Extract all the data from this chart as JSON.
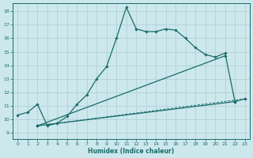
{
  "title": "",
  "xlabel": "Humidex (Indice chaleur)",
  "background_color": "#cce8ec",
  "grid_color": "#aacdd4",
  "line_color": "#1a6b6b",
  "xlim": [
    -0.5,
    23.5
  ],
  "ylim": [
    8.5,
    18.6
  ],
  "xticks": [
    0,
    1,
    2,
    3,
    4,
    5,
    6,
    7,
    8,
    9,
    10,
    11,
    12,
    13,
    14,
    15,
    16,
    17,
    18,
    19,
    20,
    21,
    22,
    23
  ],
  "yticks": [
    9,
    10,
    11,
    12,
    13,
    14,
    15,
    16,
    17,
    18
  ],
  "curve": {
    "x": [
      0,
      1,
      2,
      3,
      4,
      5,
      6,
      7,
      8,
      9,
      10,
      11,
      12,
      13,
      14,
      15,
      16,
      17,
      18,
      19,
      20,
      21,
      22,
      23
    ],
    "y": [
      10.3,
      10.5,
      11.1,
      9.5,
      9.7,
      10.2,
      11.1,
      11.8,
      13.0,
      13.9,
      16.0,
      18.3,
      16.7,
      16.5,
      16.5,
      16.7,
      16.6,
      16.0,
      15.3,
      14.8,
      14.6,
      14.9,
      11.3,
      11.5
    ]
  },
  "line1": {
    "x": [
      2,
      21
    ],
    "y": [
      9.5,
      14.7
    ]
  },
  "line2": {
    "x": [
      2,
      22
    ],
    "y": [
      9.5,
      11.3
    ]
  },
  "line3_dashed": {
    "x": [
      2,
      23
    ],
    "y": [
      9.5,
      11.5
    ]
  }
}
